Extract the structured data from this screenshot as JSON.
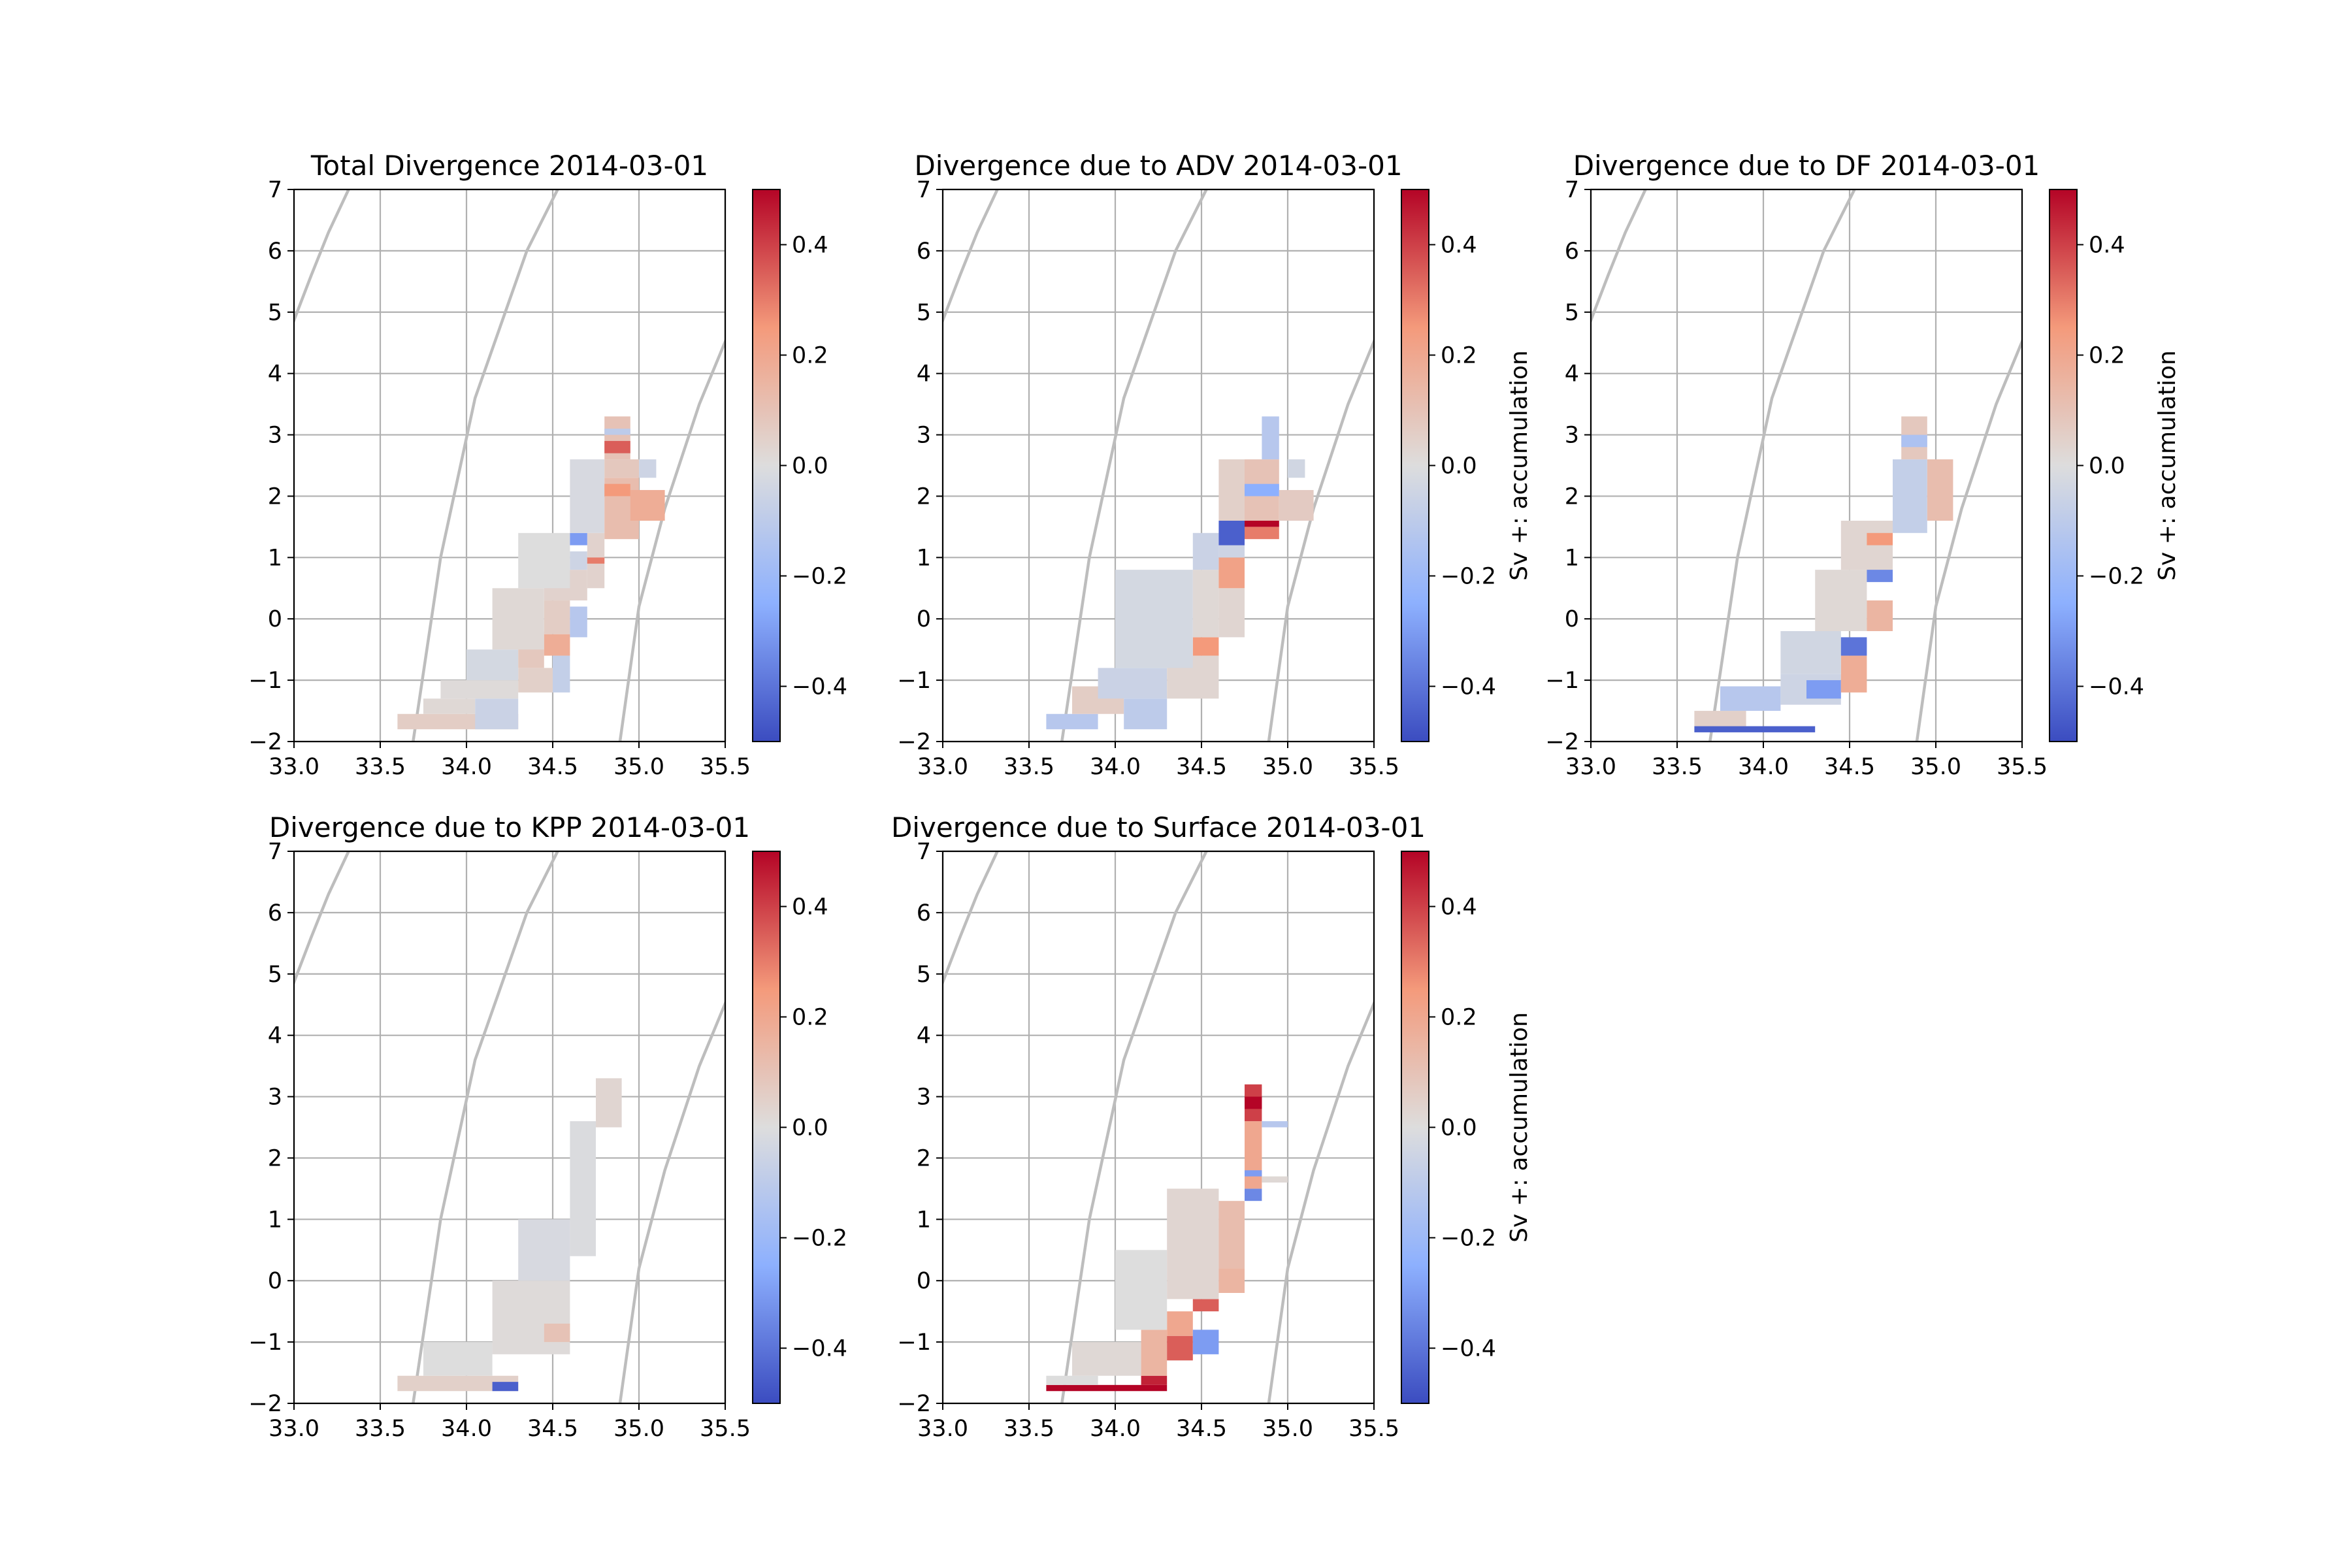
{
  "figure": {
    "background": "#ffffff"
  },
  "colormap": {
    "name": "coolwarm",
    "vmin": -0.5,
    "vmax": 0.5,
    "ticks": [
      "−0.4",
      "−0.2",
      "0.0",
      "0.2",
      "0.4"
    ],
    "tick_values": [
      -0.4,
      -0.2,
      0.0,
      0.2,
      0.4
    ]
  },
  "axes_common": {
    "xlim": [
      33.0,
      35.5
    ],
    "ylim": [
      -2,
      7
    ],
    "xticks": [
      "33.0",
      "33.5",
      "34.0",
      "34.5",
      "35.0",
      "35.5"
    ],
    "xtick_values": [
      33.0,
      33.5,
      34.0,
      34.5,
      35.0,
      35.5
    ],
    "yticks": [
      "−2",
      "−1",
      "0",
      "1",
      "2",
      "3",
      "4",
      "5",
      "6",
      "7"
    ],
    "ytick_values": [
      -2,
      -1,
      0,
      1,
      2,
      3,
      4,
      5,
      6,
      7
    ],
    "grid": true,
    "grid_color": "#b0b0b0",
    "density_contour_color": "#bdbdbd"
  },
  "chart_data": [
    {
      "type": "heatmap",
      "title": "Total Divergence 2014-03-01",
      "colorbar_label": "",
      "xlim": [
        33.0,
        35.5
      ],
      "ylim": [
        -2,
        7
      ],
      "cells": [
        [
          33.6,
          34.3,
          -1.8,
          -1.55,
          0.06
        ],
        [
          33.75,
          34.05,
          -1.55,
          -1.3,
          0.02
        ],
        [
          34.05,
          34.3,
          -1.8,
          -1.3,
          -0.06
        ],
        [
          33.85,
          34.3,
          -1.3,
          -1.0,
          0.01
        ],
        [
          34.3,
          34.5,
          -1.2,
          -0.8,
          0.05
        ],
        [
          34.5,
          34.6,
          -1.2,
          -0.6,
          -0.08
        ],
        [
          34.0,
          34.3,
          -1.0,
          -0.5,
          -0.03
        ],
        [
          34.3,
          34.45,
          -0.8,
          -0.2,
          0.08
        ],
        [
          34.45,
          34.6,
          -0.6,
          -0.25,
          0.18
        ],
        [
          34.45,
          34.6,
          -0.25,
          0.3,
          0.06
        ],
        [
          34.15,
          34.45,
          -0.5,
          0.5,
          0.02
        ],
        [
          34.45,
          34.7,
          0.3,
          0.8,
          0.04
        ],
        [
          34.6,
          34.7,
          -0.3,
          0.2,
          -0.12
        ],
        [
          34.6,
          34.7,
          0.8,
          1.1,
          -0.05
        ],
        [
          34.7,
          34.8,
          0.5,
          1.4,
          0.04
        ],
        [
          34.7,
          34.8,
          0.9,
          1.0,
          0.3
        ],
        [
          34.3,
          34.6,
          0.5,
          1.4,
          0.0
        ],
        [
          34.6,
          34.7,
          1.2,
          1.4,
          -0.3
        ],
        [
          34.6,
          34.8,
          1.4,
          2.6,
          -0.02
        ],
        [
          34.8,
          35.0,
          1.3,
          2.3,
          0.12
        ],
        [
          34.8,
          34.95,
          2.0,
          2.2,
          0.25
        ],
        [
          34.95,
          35.15,
          1.6,
          2.1,
          0.18
        ],
        [
          34.8,
          35.0,
          2.3,
          2.6,
          0.08
        ],
        [
          35.0,
          35.1,
          2.3,
          2.6,
          -0.05
        ],
        [
          34.8,
          34.95,
          2.6,
          3.3,
          0.1
        ],
        [
          34.8,
          34.95,
          2.7,
          2.9,
          0.35
        ],
        [
          34.8,
          34.95,
          3.0,
          3.1,
          -0.1
        ]
      ]
    },
    {
      "type": "heatmap",
      "title": "Divergence due to ADV 2014-03-01",
      "colorbar_label": "Sv +: accumulation",
      "xlim": [
        33.0,
        35.5
      ],
      "ylim": [
        -2,
        7
      ],
      "cells": [
        [
          33.6,
          33.9,
          -1.8,
          -1.55,
          -0.12
        ],
        [
          33.75,
          34.05,
          -1.55,
          -1.1,
          0.06
        ],
        [
          34.05,
          34.3,
          -1.8,
          -1.3,
          -0.1
        ],
        [
          33.9,
          34.3,
          -1.3,
          -0.8,
          -0.06
        ],
        [
          34.3,
          34.6,
          -1.3,
          -0.6,
          0.03
        ],
        [
          34.45,
          34.6,
          -0.6,
          -0.3,
          0.25
        ],
        [
          34.0,
          34.45,
          -0.8,
          0.8,
          -0.03
        ],
        [
          34.45,
          34.6,
          -0.3,
          0.8,
          0.02
        ],
        [
          34.6,
          34.75,
          -0.3,
          0.5,
          0.03
        ],
        [
          34.6,
          34.75,
          0.5,
          1.0,
          0.22
        ],
        [
          34.45,
          34.6,
          0.8,
          1.4,
          -0.06
        ],
        [
          34.6,
          34.75,
          1.0,
          1.4,
          -0.05
        ],
        [
          34.6,
          34.75,
          1.2,
          1.6,
          -0.45
        ],
        [
          34.6,
          34.75,
          1.6,
          2.6,
          0.05
        ],
        [
          34.75,
          34.95,
          1.3,
          1.5,
          0.3
        ],
        [
          34.75,
          34.95,
          1.5,
          1.6,
          0.5
        ],
        [
          34.75,
          34.95,
          1.6,
          2.6,
          0.1
        ],
        [
          34.75,
          34.95,
          2.0,
          2.2,
          -0.25
        ],
        [
          34.95,
          35.15,
          1.6,
          2.1,
          0.07
        ],
        [
          35.0,
          35.1,
          2.3,
          2.6,
          -0.04
        ],
        [
          34.85,
          34.95,
          2.6,
          3.3,
          -0.12
        ]
      ]
    },
    {
      "type": "heatmap",
      "title": "Divergence due to DF 2014-03-01",
      "colorbar_label": "Sv +: accumulation",
      "xlim": [
        33.0,
        35.5
      ],
      "ylim": [
        -2,
        7
      ],
      "cells": [
        [
          33.6,
          34.3,
          -1.85,
          -1.75,
          -0.45
        ],
        [
          33.6,
          33.9,
          -1.75,
          -1.5,
          0.05
        ],
        [
          33.75,
          34.1,
          -1.5,
          -1.1,
          -0.12
        ],
        [
          34.1,
          34.45,
          -1.4,
          -0.9,
          -0.05
        ],
        [
          34.25,
          34.45,
          -1.3,
          -1.0,
          -0.3
        ],
        [
          34.45,
          34.6,
          -1.2,
          -0.6,
          0.18
        ],
        [
          34.1,
          34.45,
          -0.9,
          -0.2,
          -0.04
        ],
        [
          34.45,
          34.6,
          -0.6,
          -0.3,
          -0.4
        ],
        [
          34.3,
          34.6,
          -0.2,
          0.8,
          0.02
        ],
        [
          34.6,
          34.75,
          -0.2,
          0.3,
          0.15
        ],
        [
          34.6,
          34.75,
          0.6,
          0.9,
          -0.35
        ],
        [
          34.45,
          34.75,
          0.8,
          1.6,
          0.03
        ],
        [
          34.6,
          34.75,
          1.2,
          1.4,
          0.25
        ],
        [
          34.75,
          34.95,
          1.4,
          2.6,
          -0.08
        ],
        [
          34.95,
          35.1,
          1.6,
          2.6,
          0.12
        ],
        [
          34.8,
          34.95,
          2.6,
          3.3,
          0.08
        ],
        [
          34.8,
          34.95,
          2.8,
          3.0,
          -0.15
        ]
      ]
    },
    {
      "type": "heatmap",
      "title": "Divergence due to KPP 2014-03-01",
      "colorbar_label": "",
      "xlim": [
        33.0,
        35.5
      ],
      "ylim": [
        -2,
        7
      ],
      "cells": [
        [
          33.6,
          34.3,
          -1.8,
          -1.55,
          0.05
        ],
        [
          34.15,
          34.3,
          -1.8,
          -1.65,
          -0.45
        ],
        [
          33.75,
          34.15,
          -1.55,
          -1.0,
          0.0
        ],
        [
          34.15,
          34.6,
          -1.2,
          0.0,
          0.01
        ],
        [
          34.45,
          34.6,
          -1.0,
          -0.7,
          0.1
        ],
        [
          34.3,
          34.6,
          0.0,
          1.0,
          -0.02
        ],
        [
          34.6,
          34.75,
          0.4,
          2.6,
          -0.01
        ],
        [
          34.75,
          34.9,
          2.5,
          3.3,
          0.03
        ]
      ]
    },
    {
      "type": "heatmap",
      "title": "Divergence due to Surface 2014-03-01",
      "colorbar_label": "Sv +: accumulation",
      "xlim": [
        33.0,
        35.5
      ],
      "ylim": [
        -2,
        7
      ],
      "cells": [
        [
          33.6,
          34.3,
          -1.8,
          -1.7,
          0.5
        ],
        [
          34.15,
          34.3,
          -1.7,
          -1.55,
          0.45
        ],
        [
          33.6,
          33.9,
          -1.7,
          -1.55,
          0.0
        ],
        [
          33.75,
          34.15,
          -1.55,
          -1.0,
          0.02
        ],
        [
          34.15,
          34.3,
          -1.55,
          -0.8,
          0.15
        ],
        [
          34.3,
          34.45,
          -1.3,
          -0.9,
          0.35
        ],
        [
          34.3,
          34.45,
          -0.9,
          -0.5,
          0.2
        ],
        [
          34.45,
          34.6,
          -1.2,
          -0.8,
          -0.3
        ],
        [
          34.45,
          34.6,
          -0.5,
          -0.3,
          0.35
        ],
        [
          34.0,
          34.3,
          -0.8,
          0.5,
          0.0
        ],
        [
          34.3,
          34.6,
          -0.3,
          1.5,
          0.03
        ],
        [
          34.6,
          34.75,
          -0.2,
          0.2,
          0.15
        ],
        [
          34.6,
          34.75,
          0.2,
          1.3,
          0.12
        ],
        [
          34.75,
          34.85,
          1.3,
          1.5,
          -0.35
        ],
        [
          34.75,
          34.85,
          1.5,
          2.6,
          0.2
        ],
        [
          34.75,
          34.85,
          1.7,
          1.8,
          -0.3
        ],
        [
          34.85,
          35.0,
          1.6,
          1.7,
          0.02
        ],
        [
          34.85,
          35.0,
          2.5,
          2.6,
          -0.12
        ],
        [
          34.75,
          34.85,
          2.6,
          3.2,
          0.4
        ],
        [
          34.75,
          34.85,
          2.8,
          3.0,
          0.5
        ]
      ]
    }
  ]
}
